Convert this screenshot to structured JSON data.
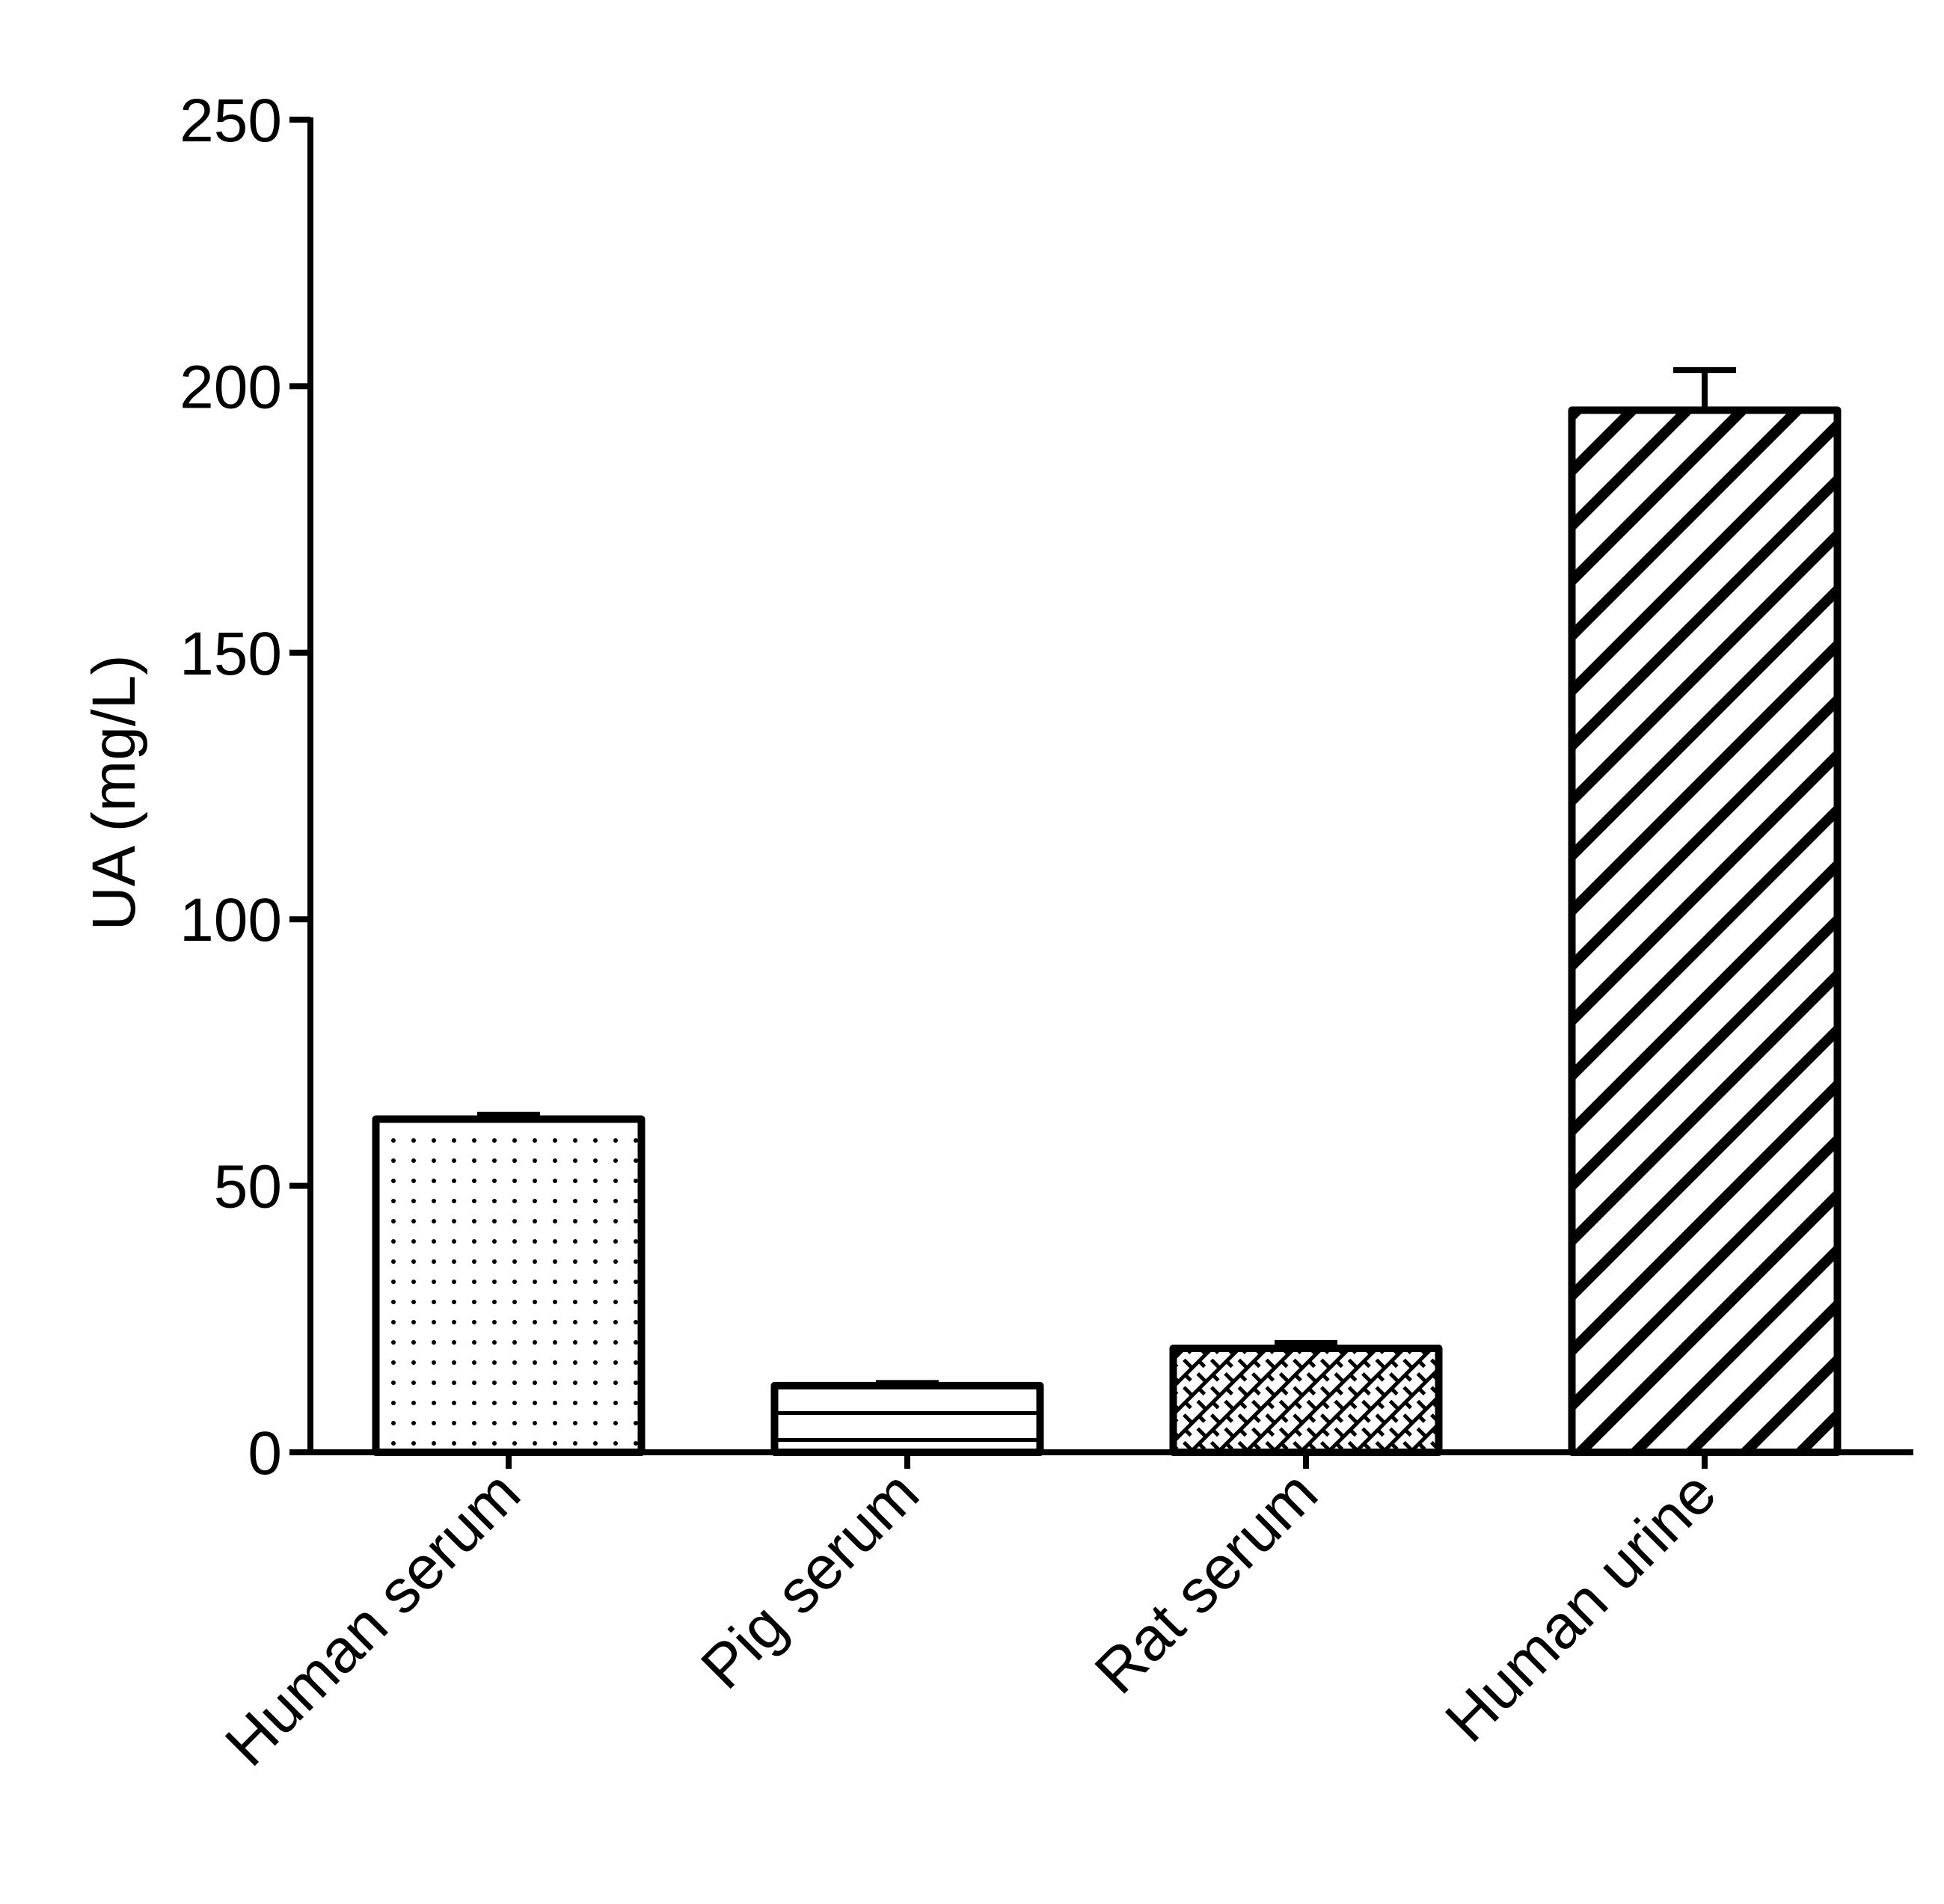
{
  "chart_data": {
    "type": "bar",
    "title": "",
    "xlabel": "",
    "ylabel": "UA (mg/L)",
    "ylim": [
      0,
      250
    ],
    "yticks": [
      0,
      50,
      100,
      150,
      200,
      250
    ],
    "grid": false,
    "legend": "none",
    "categories": [
      "Human serum",
      "Pig serum",
      "Rat serum",
      "Human urine"
    ],
    "values": [
      62.5,
      12.5,
      19.5,
      195.5
    ],
    "errors": [
      0.8,
      0.5,
      1.0,
      7.5
    ],
    "patterns": [
      "dots",
      "horizontal-lines",
      "crosshatch",
      "diagonal-stripes"
    ],
    "colors": {
      "bar_fill": "#ffffff",
      "bar_stroke": "#000000",
      "axis": "#000000"
    }
  }
}
